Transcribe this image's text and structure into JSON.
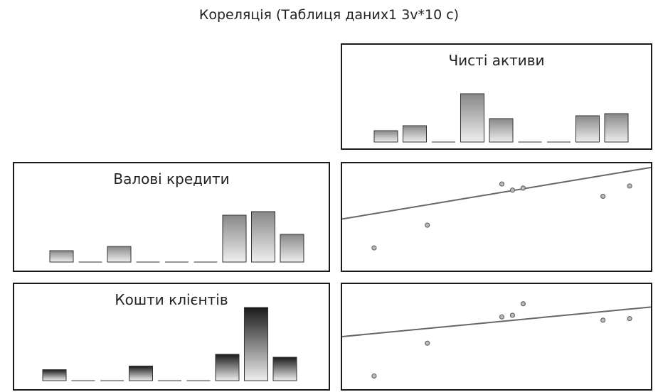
{
  "page": {
    "title": "Кореляція (Таблиця даних1 3v*10 с)"
  },
  "chart_data": [
    {
      "type": "bar",
      "title": "Чисті активи",
      "values": [
        16,
        23,
        0,
        68,
        33,
        0,
        0,
        37,
        40
      ],
      "colors": {
        "bar_light": "#eeeeee",
        "bar_dark": "#888888",
        "border": "#333333"
      }
    },
    {
      "type": "bar",
      "title": "Валові кредити",
      "values": [
        16,
        0,
        22,
        0,
        0,
        0,
        66,
        71,
        39
      ],
      "colors": {
        "bar_light": "#eeeeee",
        "bar_dark": "#888888",
        "border": "#333333"
      }
    },
    {
      "type": "bar",
      "title": "Кошти клієнтів",
      "values": [
        15,
        0,
        0,
        20,
        0,
        0,
        36,
        100,
        32
      ],
      "colors": {
        "bar_light": "#eeeeee",
        "bar_dark": "#1a1a1a",
        "border": "#333333"
      }
    },
    {
      "type": "scatter",
      "x": [
        1,
        2,
        3.4,
        3.6,
        3.8,
        5.3,
        5.8
      ],
      "y": [
        1.1,
        2.2,
        4.2,
        3.9,
        4.0,
        3.6,
        4.1
      ],
      "xlim": [
        0.4,
        6.2
      ],
      "ylim": [
        0,
        5.2
      ],
      "fit_line": {
        "y_at_xmin": 2.5,
        "y_at_xmax": 5.0
      },
      "colors": {
        "point": "#666666",
        "line": "#666666"
      }
    },
    {
      "type": "scatter",
      "x": [
        1,
        2,
        3.4,
        3.6,
        3.8,
        5.3,
        5.8
      ],
      "y": [
        0.8,
        2.8,
        4.4,
        4.5,
        5.2,
        4.2,
        4.3
      ],
      "xlim": [
        0.4,
        6.2
      ],
      "ylim": [
        0,
        6.4
      ],
      "fit_line": {
        "y_at_xmin": 3.2,
        "y_at_xmax": 5.0
      },
      "colors": {
        "point": "#666666",
        "line": "#666666"
      }
    }
  ]
}
